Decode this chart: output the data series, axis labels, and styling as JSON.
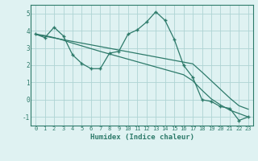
{
  "x": [
    0,
    1,
    2,
    3,
    4,
    5,
    6,
    7,
    8,
    9,
    10,
    11,
    12,
    13,
    14,
    15,
    16,
    17,
    18,
    19,
    20,
    21,
    22,
    23
  ],
  "line_main": [
    3.8,
    3.6,
    4.2,
    3.7,
    2.6,
    2.1,
    1.8,
    1.8,
    2.7,
    2.8,
    3.8,
    4.05,
    4.5,
    5.1,
    4.6,
    3.5,
    2.0,
    1.3,
    0.0,
    -0.1,
    -0.4,
    -0.5,
    -1.2,
    -1.0
  ],
  "line_top": [
    3.8,
    3.68,
    3.58,
    3.48,
    3.38,
    3.28,
    3.18,
    3.08,
    2.98,
    2.88,
    2.78,
    2.68,
    2.58,
    2.48,
    2.38,
    2.28,
    2.18,
    2.08,
    1.6,
    1.1,
    0.6,
    0.1,
    -0.35,
    -0.55
  ],
  "line_bottom": [
    3.8,
    3.72,
    3.6,
    3.45,
    3.28,
    3.12,
    2.96,
    2.8,
    2.65,
    2.5,
    2.35,
    2.2,
    2.05,
    1.9,
    1.75,
    1.6,
    1.45,
    1.1,
    0.55,
    0.05,
    -0.3,
    -0.6,
    -0.8,
    -1.0
  ],
  "bg_color": "#dff2f2",
  "grid_color": "#aed4d4",
  "line_color": "#2d7a6a",
  "xlabel": "Humidex (Indice chaleur)",
  "xlim": [
    -0.5,
    23.5
  ],
  "ylim": [
    -1.5,
    5.5
  ],
  "yticks": [
    -1,
    0,
    1,
    2,
    3,
    4,
    5
  ],
  "xticks": [
    0,
    1,
    2,
    3,
    4,
    5,
    6,
    7,
    8,
    9,
    10,
    11,
    12,
    13,
    14,
    15,
    16,
    17,
    18,
    19,
    20,
    21,
    22,
    23
  ]
}
